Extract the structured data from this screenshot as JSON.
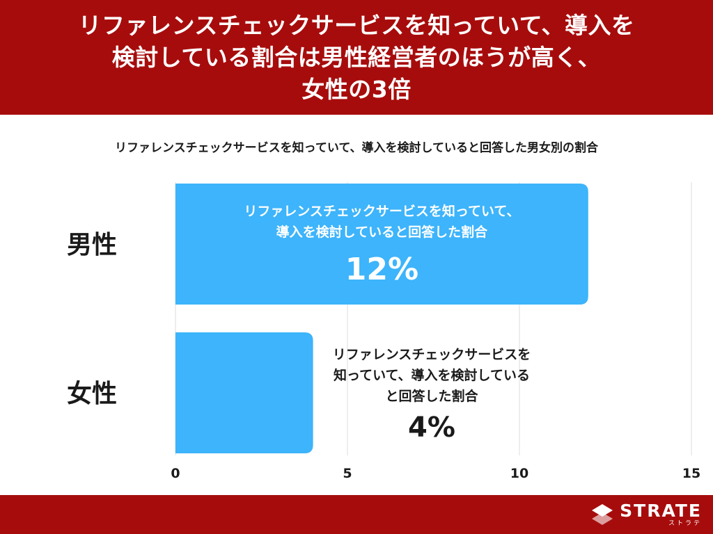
{
  "header": {
    "lines": [
      "リファレンスチェックサービスを知っていて、導入を",
      "検討している割合は男性経営者のほうが高く、",
      "女性の3倍"
    ]
  },
  "colors": {
    "brand_red": "#a70c0c",
    "bar": "#3db4fb",
    "grid": "#dddddd"
  },
  "chart_data": {
    "type": "bar",
    "orientation": "horizontal",
    "title": "リファレンスチェックサービスを知っていて、導入を検討していると回答した男女別の割合",
    "categories": [
      "男性",
      "女性"
    ],
    "values": [
      12,
      4
    ],
    "xlim": [
      0,
      15
    ],
    "xticks": [
      "0",
      "5",
      "10",
      "15"
    ],
    "grid": true,
    "annotations": [
      {
        "category": "男性",
        "position": "inside",
        "lines": [
          "リファレンスチェックサービスを知っていて、",
          "導入を検討していると回答した割合"
        ],
        "value_label": "12%"
      },
      {
        "category": "女性",
        "position": "outside",
        "lines": [
          "リファレンスチェックサービスを",
          "知っていて、導入を検討している",
          "と回答した割合"
        ],
        "value_label": "4%"
      }
    ]
  },
  "footer": {
    "logo": {
      "icon": "strate-logo-icon",
      "name": "STRATE",
      "sub": "ストラテ"
    }
  }
}
